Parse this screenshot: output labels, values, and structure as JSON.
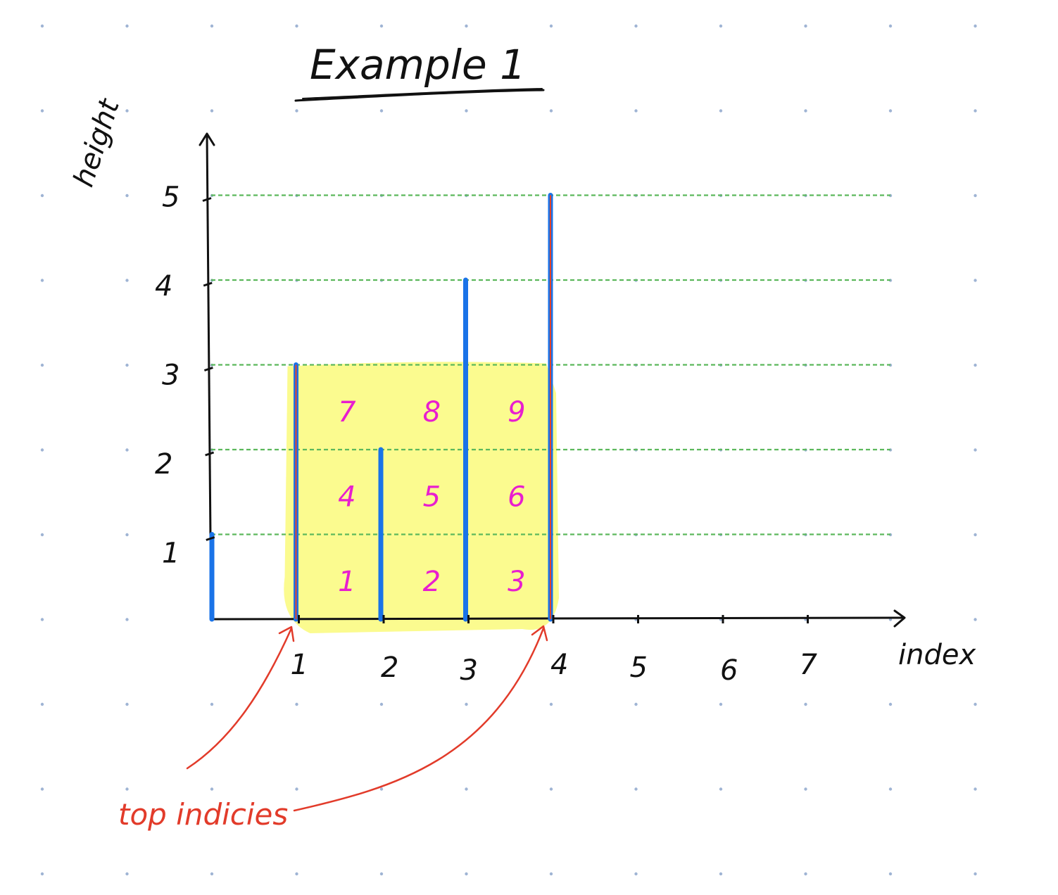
{
  "title": "Example 1",
  "x_axis_label": "index",
  "y_axis_label": "height",
  "x_ticks": [
    "1",
    "2",
    "3",
    "4",
    "5",
    "6",
    "7"
  ],
  "y_ticks": [
    "1",
    "2",
    "3",
    "4",
    "5"
  ],
  "bars": [
    {
      "index": 0,
      "height": 1,
      "color": "#1a73e8"
    },
    {
      "index": 1,
      "height": 3,
      "color": "#1a73e8"
    },
    {
      "index": 2,
      "height": 2,
      "color": "#1a73e8"
    },
    {
      "index": 3,
      "height": 4,
      "color": "#1a73e8"
    },
    {
      "index": 4,
      "height": 5,
      "color": "#1a73e8"
    }
  ],
  "selected_indices": [
    1,
    4
  ],
  "highlight": {
    "x_start": 1,
    "x_end": 4,
    "height": 3,
    "color": "#fbfb8f"
  },
  "cells": [
    {
      "label": "1",
      "col": 1,
      "row": 0
    },
    {
      "label": "2",
      "col": 2,
      "row": 0
    },
    {
      "label": "3",
      "col": 3,
      "row": 0
    },
    {
      "label": "4",
      "col": 1,
      "row": 1
    },
    {
      "label": "5",
      "col": 2,
      "row": 1
    },
    {
      "label": "6",
      "col": 3,
      "row": 1
    },
    {
      "label": "7",
      "col": 1,
      "row": 2
    },
    {
      "label": "8",
      "col": 2,
      "row": 2
    },
    {
      "label": "9",
      "col": 3,
      "row": 2
    }
  ],
  "annotation": {
    "text": "top indicies",
    "color": "#e23b2a"
  },
  "colors": {
    "grid_line": "#5cb85c",
    "cell_text": "#e81ecf",
    "axis": "#111111",
    "dot": "#9fb4d4"
  }
}
